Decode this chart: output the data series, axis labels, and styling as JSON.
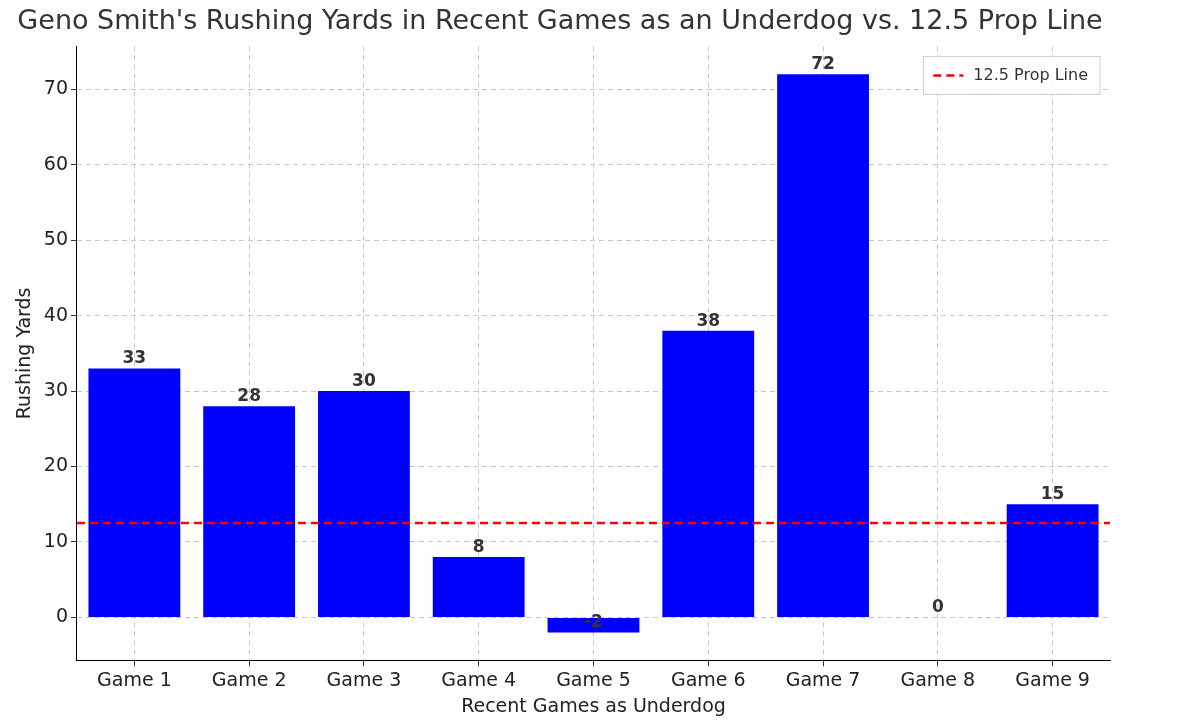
{
  "chart_data": {
    "type": "bar",
    "title": "Geno Smith's Rushing Yards in Recent Games as an Underdog vs. 12.5 Prop Line",
    "xlabel": "Recent Games as Underdog",
    "ylabel": "Rushing Yards",
    "categories": [
      "Game 1",
      "Game 2",
      "Game 3",
      "Game 4",
      "Game 5",
      "Game 6",
      "Game 7",
      "Game 8",
      "Game 9"
    ],
    "values": [
      33,
      28,
      30,
      8,
      -2,
      38,
      72,
      0,
      15
    ],
    "color": "#0000ff",
    "data_labels": true,
    "ylim": [
      -5.7,
      75.7
    ],
    "yticks": [
      0,
      10,
      20,
      30,
      40,
      50,
      60,
      70
    ],
    "grid": true,
    "legend": "top right",
    "ref_lines": [
      {
        "axis": "y",
        "value": 12.5,
        "label": "12.5 Prop Line",
        "color": "#ff0000",
        "line_style": "dashed"
      }
    ]
  }
}
